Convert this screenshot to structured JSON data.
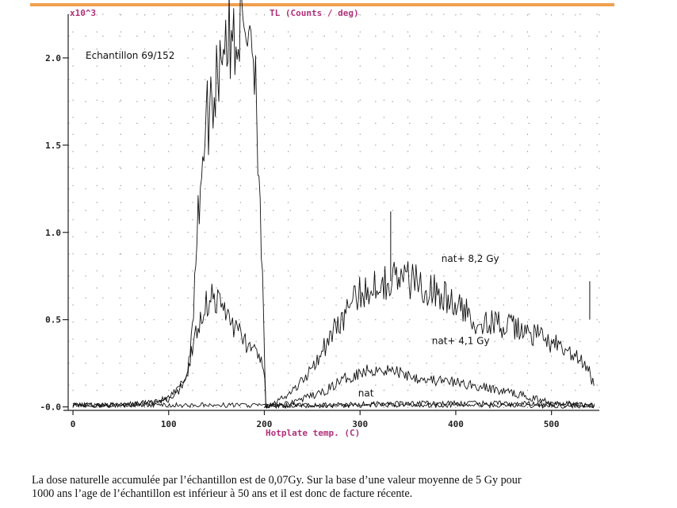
{
  "chart_data": {
    "type": "line",
    "title": "TL (Counts / deg)",
    "y_multiplier_label": "x10^3",
    "xlabel": "Hotplate temp. (C)",
    "ylabel": "",
    "xlim": [
      -5,
      550
    ],
    "ylim": [
      -0.02,
      2.25
    ],
    "xticks": [
      0,
      100,
      200,
      300,
      400,
      500
    ],
    "xtick_labels": [
      "0",
      "100",
      "200",
      "300",
      "400",
      "500"
    ],
    "yticks": [
      0,
      0.5,
      1.0,
      1.5,
      2.0
    ],
    "ytick_labels": [
      "-0.0",
      "0.5",
      "1.0",
      "1.5",
      "2.0"
    ],
    "grid": "dotted",
    "sample_label": "Echantillon 69/152",
    "annotations": [
      {
        "text": "nat+ 8,2 Gy",
        "x": 385,
        "y": 0.83
      },
      {
        "text": "nat+ 4,1 Gy",
        "x": 375,
        "y": 0.36
      },
      {
        "text": "nat",
        "x": 298,
        "y": 0.06
      }
    ],
    "series": [
      {
        "x": [
          0,
          20,
          40,
          60,
          80,
          100,
          110,
          120,
          125,
          130,
          135,
          140,
          145,
          150,
          155,
          160,
          165,
          170,
          175,
          180,
          185,
          190,
          195,
          200,
          201,
          210,
          240,
          300,
          400,
          500,
          545
        ],
        "y": [
          0.01,
          0.01,
          0.01,
          0.01,
          0.02,
          0.05,
          0.1,
          0.2,
          0.5,
          1.0,
          1.45,
          1.65,
          1.75,
          1.9,
          2.1,
          2.15,
          2.05,
          2.15,
          2.2,
          2.15,
          2.25,
          2.0,
          1.3,
          0.3,
          0.0,
          0.005,
          0.005,
          0.01,
          0.01,
          0.005,
          0.005
        ]
      },
      {
        "x": [
          0,
          50,
          100,
          110,
          120,
          125,
          130,
          135,
          140,
          145,
          150,
          160,
          170,
          180,
          190,
          200,
          201,
          210,
          230,
          260,
          280,
          300,
          320,
          340,
          360,
          380,
          400,
          420,
          440,
          460,
          480,
          500,
          520,
          540,
          545
        ],
        "y": [
          0.01,
          0.01,
          0.04,
          0.08,
          0.2,
          0.35,
          0.45,
          0.55,
          0.6,
          0.65,
          0.6,
          0.55,
          0.45,
          0.38,
          0.3,
          0.25,
          0.0,
          0.0,
          0.03,
          0.08,
          0.15,
          0.2,
          0.22,
          0.2,
          0.17,
          0.15,
          0.14,
          0.12,
          0.1,
          0.08,
          0.05,
          0.03,
          0.02,
          0.01,
          0.01
        ]
      },
      {
        "x": [
          200,
          220,
          240,
          260,
          280,
          300,
          320,
          340,
          360,
          380,
          400,
          420,
          440,
          460,
          480,
          500,
          520,
          530,
          540,
          545
        ],
        "y": [
          0.0,
          0.05,
          0.15,
          0.32,
          0.5,
          0.65,
          0.72,
          0.74,
          0.72,
          0.66,
          0.58,
          0.5,
          0.48,
          0.45,
          0.42,
          0.37,
          0.3,
          0.26,
          0.2,
          0.1
        ]
      },
      {
        "x": [
          0,
          100,
          200,
          250,
          300,
          350,
          400,
          450,
          500,
          545
        ],
        "y": [
          0.01,
          0.01,
          0.01,
          0.01,
          0.015,
          0.02,
          0.02,
          0.02,
          0.015,
          0.01
        ]
      }
    ],
    "spikes": [
      {
        "x": 332,
        "y": 1.12
      },
      {
        "x": 540,
        "y": 0.5
      }
    ]
  },
  "caption": {
    "line1": "La dose naturelle accumulée  par l’échantillon est de 0,07Gy. Sur la base d’une valeur moyenne de 5 Gy pour",
    "line2": "1000 ans l’age de l’échantillon est inférieur à 50 ans et il est donc de facture récente."
  }
}
